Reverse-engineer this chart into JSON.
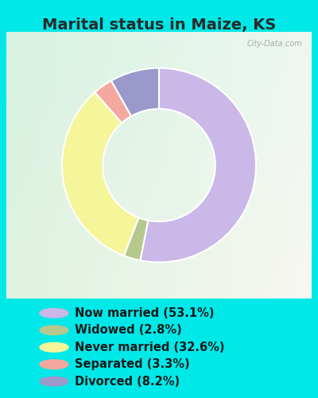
{
  "title": "Marital status in Maize, KS",
  "title_fontsize": 14,
  "title_fontweight": "bold",
  "slices": [
    53.1,
    2.8,
    32.6,
    3.3,
    8.2
  ],
  "labels": [
    "Now married (53.1%)",
    "Widowed (2.8%)",
    "Never married (32.6%)",
    "Separated (3.3%)",
    "Divorced (8.2%)"
  ],
  "colors": [
    "#c9b8e8",
    "#b5c98e",
    "#f5f59a",
    "#f5a8a0",
    "#9999cc"
  ],
  "bg_color": "#00e8e8",
  "chart_panel_color": "#e8f5e8",
  "donut_width": 0.42,
  "startangle": 90,
  "watermark": "City-Data.com",
  "legend_fontsize": 10.5,
  "title_color": "#2a2a2a"
}
